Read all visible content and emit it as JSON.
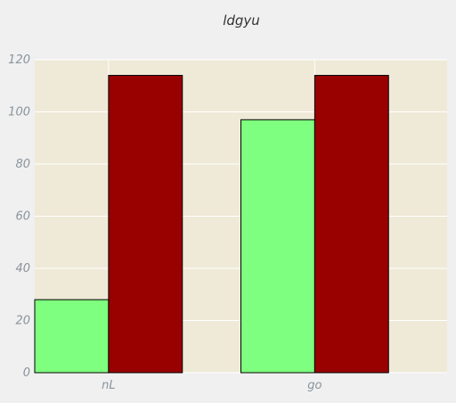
{
  "chart_data": {
    "type": "bar",
    "title": "ldgyu",
    "xlabel": "",
    "ylabel": "",
    "categories": [
      "nL",
      "go"
    ],
    "series": [
      {
        "values": [
          28,
          97
        ],
        "color": "#7fff7f"
      },
      {
        "values": [
          114,
          114
        ],
        "color": "#990000"
      }
    ],
    "ylim": [
      0,
      120
    ],
    "yticks": [
      0,
      20,
      40,
      60,
      80,
      100,
      120
    ],
    "grid": true,
    "legend": "none",
    "colors": {
      "plot_background": "#efe9d7",
      "page_background": "#f0f0f0",
      "grid": "#ffffff",
      "tick_text": "#8a949c",
      "bar_edge": "#000000"
    }
  }
}
